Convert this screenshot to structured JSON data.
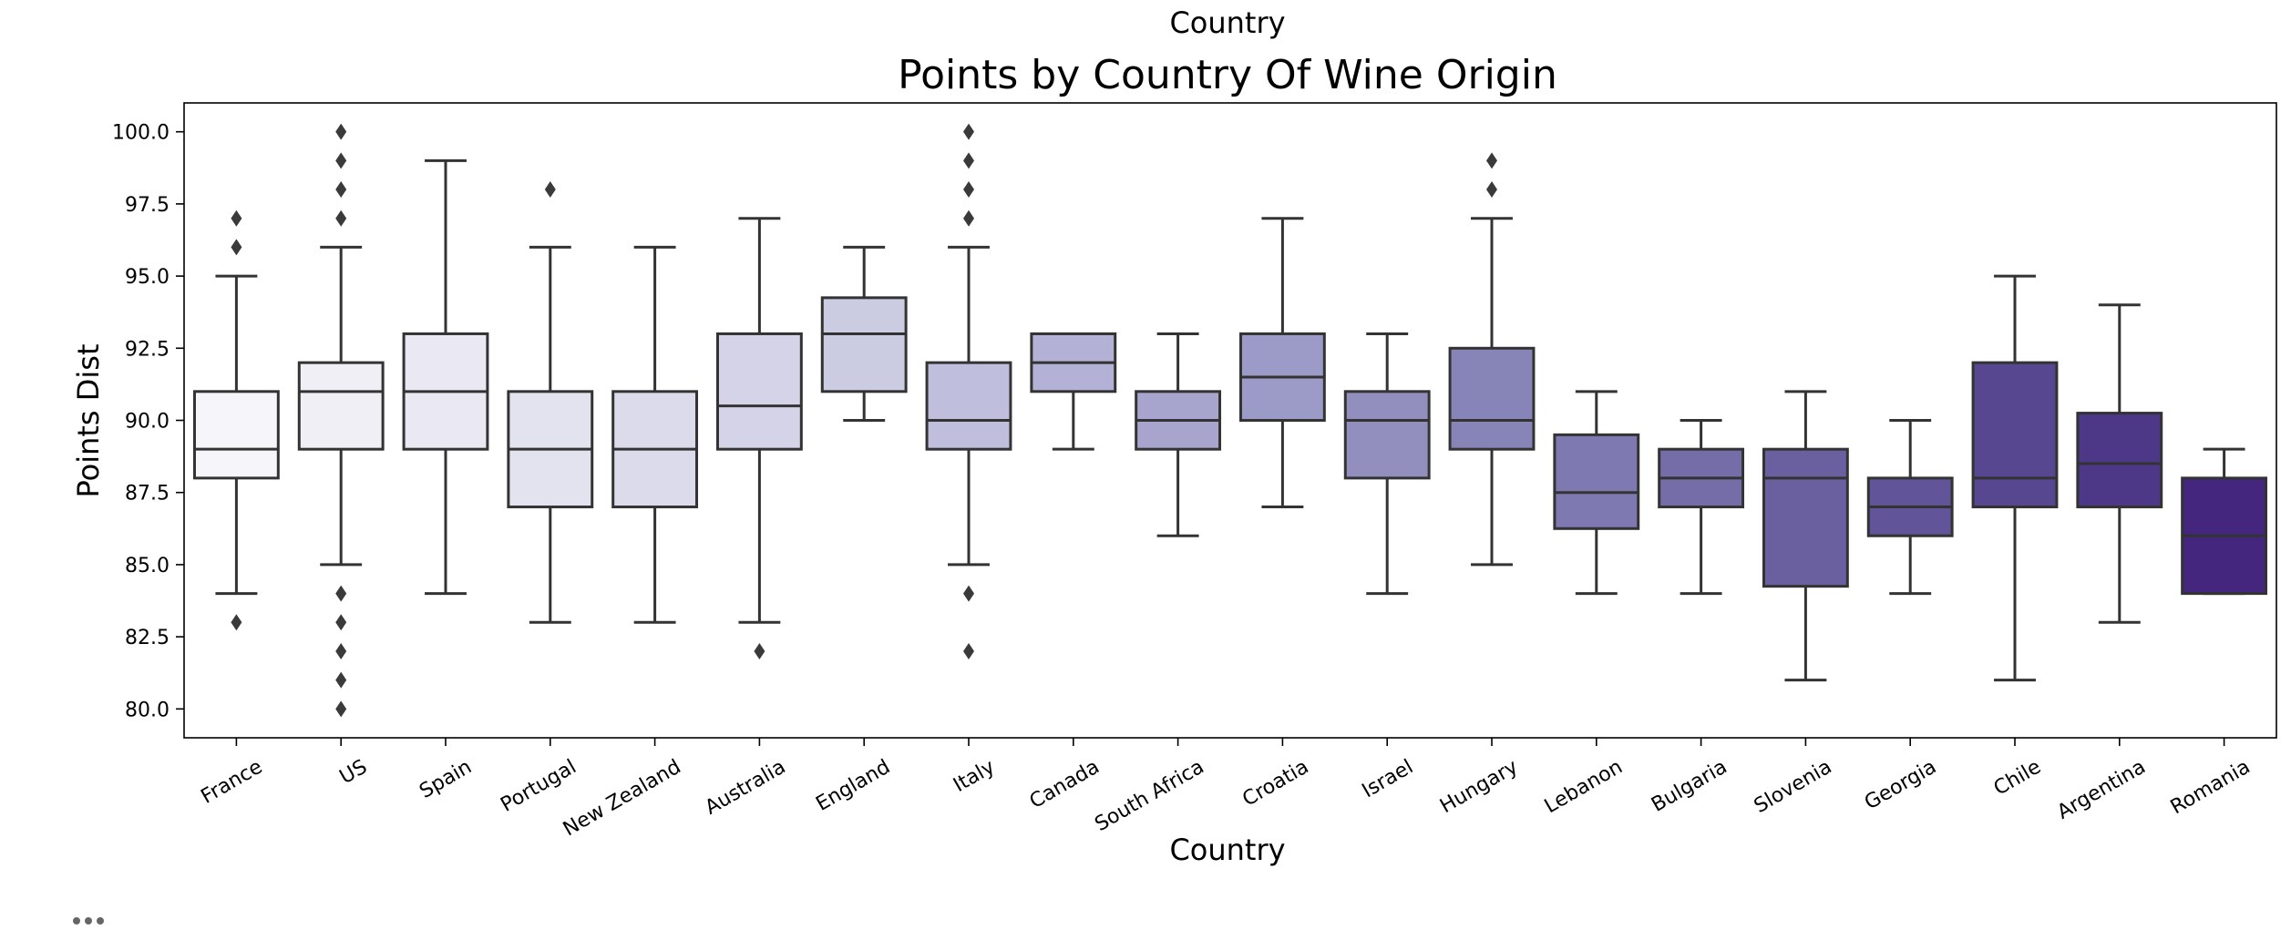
{
  "chart_data": {
    "type": "box",
    "suptitle": "Country",
    "title": "Points by Country Of Wine Origin",
    "xlabel": "Country",
    "ylabel": "Points Dist",
    "ylim": [
      79,
      101
    ],
    "yticks": [
      80.0,
      82.5,
      85.0,
      87.5,
      90.0,
      92.5,
      95.0,
      97.5,
      100.0
    ],
    "ytick_labels": [
      "80.0",
      "82.5",
      "85.0",
      "87.5",
      "90.0",
      "92.5",
      "95.0",
      "97.5",
      "100.0"
    ],
    "grid": false,
    "categories": [
      "France",
      "US",
      "Spain",
      "Portugal",
      "New Zealand",
      "Australia",
      "England",
      "Italy",
      "Canada",
      "South Africa",
      "Croatia",
      "Israel",
      "Hungary",
      "Lebanon",
      "Bulgaria",
      "Slovenia",
      "Georgia",
      "Chile",
      "Argentina",
      "Romania"
    ],
    "boxes": [
      {
        "whislo": 84,
        "q1": 88,
        "med": 89,
        "q3": 91,
        "whishi": 95,
        "fliers": [
          83,
          96,
          97
        ],
        "color": "#f6f5fa"
      },
      {
        "whislo": 85,
        "q1": 89,
        "med": 91,
        "q3": 92,
        "whishi": 96,
        "fliers": [
          80,
          81,
          82,
          83,
          84,
          97,
          98,
          99,
          100
        ],
        "color": "#f0eff6"
      },
      {
        "whislo": 84,
        "q1": 89,
        "med": 91,
        "q3": 93,
        "whishi": 99,
        "fliers": [],
        "color": "#eae9f3"
      },
      {
        "whislo": 83,
        "q1": 87,
        "med": 89,
        "q3": 91,
        "whishi": 96,
        "fliers": [
          98
        ],
        "color": "#e3e2ef"
      },
      {
        "whislo": 83,
        "q1": 87,
        "med": 89,
        "q3": 91,
        "whishi": 96,
        "fliers": [],
        "color": "#dcdbeb"
      },
      {
        "whislo": 83,
        "q1": 89,
        "med": 90.5,
        "q3": 93,
        "whishi": 97,
        "fliers": [
          82
        ],
        "color": "#d4d3e7"
      },
      {
        "whislo": 90,
        "q1": 91,
        "med": 93,
        "q3": 94.25,
        "whishi": 96,
        "fliers": [],
        "color": "#cbcbe2"
      },
      {
        "whislo": 85,
        "q1": 89,
        "med": 90,
        "q3": 92,
        "whishi": 96,
        "fliers": [
          82,
          84,
          97,
          98,
          99,
          100
        ],
        "color": "#bfbedc"
      },
      {
        "whislo": 89,
        "q1": 91,
        "med": 92,
        "q3": 93,
        "whishi": 93,
        "fliers": [],
        "color": "#b3b1d5"
      },
      {
        "whislo": 86,
        "q1": 89,
        "med": 90,
        "q3": 91,
        "whishi": 93,
        "fliers": [],
        "color": "#a7a5cd"
      },
      {
        "whislo": 87,
        "q1": 90,
        "med": 91.5,
        "q3": 93,
        "whishi": 97,
        "fliers": [],
        "color": "#9c9ac6"
      },
      {
        "whislo": 84,
        "q1": 88,
        "med": 90,
        "q3": 91,
        "whishi": 93,
        "fliers": [],
        "color": "#928fbf"
      },
      {
        "whislo": 85,
        "q1": 89,
        "med": 90,
        "q3": 92.5,
        "whishi": 97,
        "fliers": [
          98,
          99
        ],
        "color": "#8784b8"
      },
      {
        "whislo": 84,
        "q1": 86.25,
        "med": 87.5,
        "q3": 89.5,
        "whishi": 91,
        "fliers": [],
        "color": "#7e79b0"
      },
      {
        "whislo": 84,
        "q1": 87,
        "med": 88,
        "q3": 89,
        "whishi": 90,
        "fliers": [],
        "color": "#746da8"
      },
      {
        "whislo": 81,
        "q1": 84.25,
        "med": 88,
        "q3": 89,
        "whishi": 91,
        "fliers": [],
        "color": "#6a60a0"
      },
      {
        "whislo": 84,
        "q1": 86,
        "med": 87,
        "q3": 88,
        "whishi": 90,
        "fliers": [],
        "color": "#615498"
      },
      {
        "whislo": 81,
        "q1": 87,
        "med": 88,
        "q3": 92,
        "whishi": 95,
        "fliers": [],
        "color": "#574690"
      },
      {
        "whislo": 83,
        "q1": 87,
        "med": 88.5,
        "q3": 90.25,
        "whishi": 94,
        "fliers": [],
        "color": "#4d3787"
      },
      {
        "whislo": 84,
        "q1": 84,
        "med": 86,
        "q3": 88,
        "whishi": 89,
        "fliers": [],
        "color": "#44267e"
      }
    ],
    "line_color": "#333333"
  }
}
